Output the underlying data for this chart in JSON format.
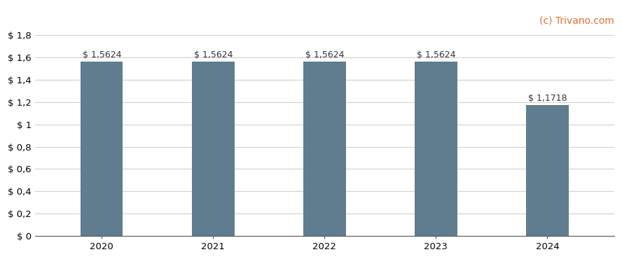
{
  "categories": [
    "2020",
    "2021",
    "2022",
    "2023",
    "2024"
  ],
  "values": [
    1.5624,
    1.5624,
    1.5624,
    1.5624,
    1.1718
  ],
  "bar_color": "#5f7d8e",
  "bar_labels": [
    "$ 1,5624",
    "$ 1,5624",
    "$ 1,5624",
    "$ 1,5624",
    "$ 1,1718"
  ],
  "ylim": [
    0,
    1.8
  ],
  "yticks": [
    0,
    0.2,
    0.4,
    0.6,
    0.8,
    1.0,
    1.2,
    1.4,
    1.6,
    1.8
  ],
  "ytick_labels": [
    "$ 0",
    "$ 0,2",
    "$ 0,4",
    "$ 0,6",
    "$ 0,8",
    "$ 1",
    "$ 1,2",
    "$ 1,4",
    "$ 1,6",
    "$ 1,8"
  ],
  "background_color": "#ffffff",
  "grid_color": "#d0d0d0",
  "watermark": "(c) Trivano.com",
  "watermark_color": "#e07030",
  "bar_label_fontsize": 9,
  "tick_fontsize": 9.5,
  "watermark_fontsize": 10,
  "bar_width": 0.38,
  "label_color": "#333333"
}
